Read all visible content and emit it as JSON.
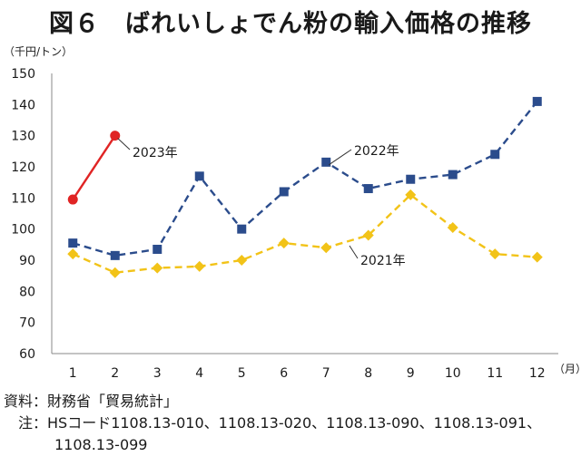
{
  "title": "図６　ばれいしょでん粉の輸入価格の推移",
  "y_unit": "（千円/トン）",
  "x_unit": "（月）",
  "notes": {
    "source": "資料：財務省「貿易統計」",
    "note_line1": "　注：HSコード1108.13-010、1108.13-020、1108.13-090、1108.13-091、",
    "note_line2": "1108.13-099"
  },
  "chart_data": {
    "type": "line",
    "categories": [
      "1",
      "2",
      "3",
      "4",
      "5",
      "6",
      "7",
      "8",
      "9",
      "10",
      "11",
      "12"
    ],
    "ylim": [
      60,
      150
    ],
    "yticks": [
      60,
      70,
      80,
      90,
      100,
      110,
      120,
      130,
      140,
      150
    ],
    "grid": false,
    "series": [
      {
        "name": "2021年",
        "color": "#F2C318",
        "marker": "diamond",
        "dash": true,
        "values": [
          92,
          86,
          87.5,
          88,
          90,
          95.5,
          94,
          98,
          111,
          100.5,
          92,
          91
        ]
      },
      {
        "name": "2022年",
        "color": "#2B4C8C",
        "marker": "square",
        "dash": true,
        "values": [
          95.5,
          91.5,
          93.5,
          117,
          100,
          112,
          121.5,
          113,
          116,
          117.5,
          124,
          141
        ]
      },
      {
        "name": "2023年",
        "color": "#E02424",
        "marker": "circle",
        "dash": false,
        "values": [
          109.5,
          130,
          null,
          null,
          null,
          null,
          null,
          null,
          null,
          null,
          null,
          null
        ]
      }
    ],
    "annotations": [
      "2023年",
      "2022年",
      "2021年"
    ]
  }
}
